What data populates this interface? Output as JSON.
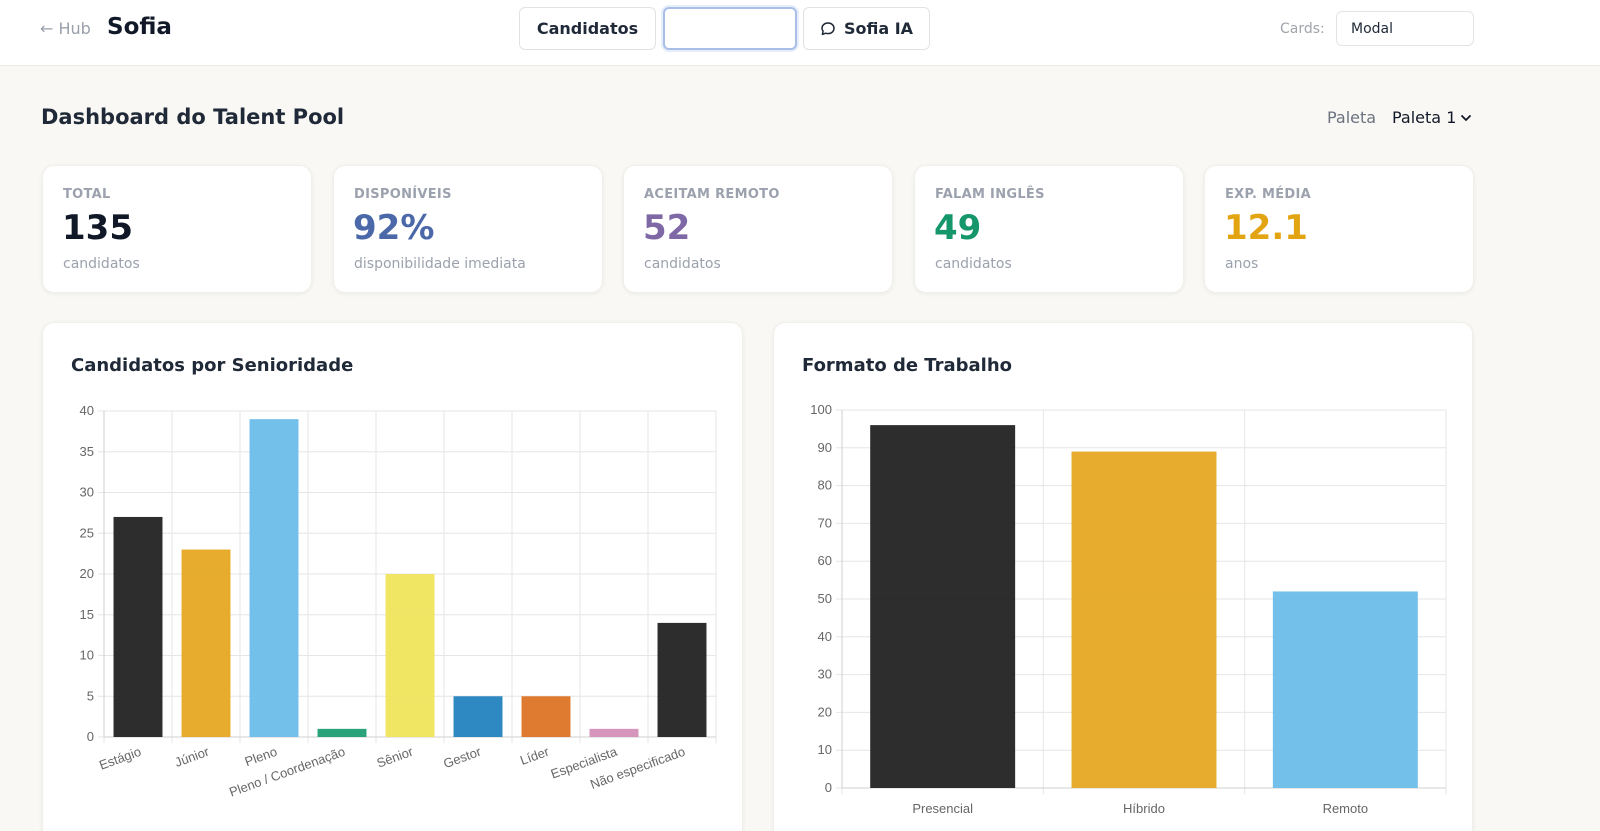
{
  "topbar": {
    "hub_link": "← Hub",
    "brand": "Sofia",
    "nav_candidatos": "Candidatos",
    "nav_blank": "",
    "nav_sofia": "Sofia IA",
    "cards_label": "Cards:",
    "cards_value": "Modal"
  },
  "header": {
    "title": "Dashboard do Talent Pool",
    "paleta_label": "Paleta",
    "paleta_value": "Paleta 1"
  },
  "stats": [
    {
      "label": "TOTAL",
      "value": "135",
      "sub": "candidatos",
      "color": "#111827"
    },
    {
      "label": "DISPONÍVEIS",
      "value": "92%",
      "sub": "disponibilidade imediata",
      "color": "#4b68a8"
    },
    {
      "label": "ACEITAM REMOTO",
      "value": "52",
      "sub": "candidatos",
      "color": "#7e69a6"
    },
    {
      "label": "FALAM INGLÊS",
      "value": "49",
      "sub": "candidatos",
      "color": "#15966b"
    },
    {
      "label": "EXP. MÉDIA",
      "value": "12.1",
      "sub": "anos",
      "color": "#e3a411"
    }
  ],
  "chart_data": [
    {
      "type": "bar",
      "title": "Candidatos por Senioridade",
      "categories": [
        "Estágio",
        "Júnior",
        "Pleno",
        "Pleno / Coordenação",
        "Sênior",
        "Gestor",
        "Líder",
        "Especialista",
        "Não especificado"
      ],
      "values": [
        27,
        23,
        39,
        1,
        20,
        5,
        5,
        1,
        14
      ],
      "colors": [
        "#222222",
        "#e6a823",
        "#6bbdea",
        "#1f9e74",
        "#f0e45c",
        "#2383bf",
        "#dd7426",
        "#d48fb9",
        "#222222"
      ],
      "ylim": [
        0,
        40
      ],
      "yticks": [
        0,
        5,
        10,
        15,
        20,
        25,
        30,
        35,
        40
      ],
      "grid": true,
      "xlabel": "",
      "ylabel": ""
    },
    {
      "type": "bar",
      "title": "Formato de Trabalho",
      "categories": [
        "Presencial",
        "Híbrido",
        "Remoto"
      ],
      "values": [
        96,
        89,
        52
      ],
      "colors": [
        "#222222",
        "#e6a823",
        "#6bbdea"
      ],
      "ylim": [
        0,
        100
      ],
      "yticks": [
        0,
        10,
        20,
        30,
        40,
        50,
        60,
        70,
        80,
        90,
        100
      ],
      "grid": true,
      "xlabel": "",
      "ylabel": ""
    }
  ]
}
